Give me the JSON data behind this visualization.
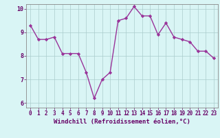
{
  "x": [
    0,
    1,
    2,
    3,
    4,
    5,
    6,
    7,
    8,
    9,
    10,
    11,
    12,
    13,
    14,
    15,
    16,
    17,
    18,
    19,
    20,
    21,
    22,
    23
  ],
  "y": [
    9.3,
    8.7,
    8.7,
    8.8,
    8.1,
    8.1,
    8.1,
    7.3,
    6.2,
    7.0,
    7.3,
    9.5,
    9.6,
    10.1,
    9.7,
    9.7,
    8.9,
    9.4,
    8.8,
    8.7,
    8.6,
    8.2,
    8.2,
    7.9
  ],
  "line_color": "#993399",
  "marker": "D",
  "marker_size": 2.2,
  "bg_color": "#d9f5f5",
  "grid_color": "#aacccc",
  "xlabel": "Windchill (Refroidissement éolien,°C)",
  "xlabel_color": "#660066",
  "tick_color": "#660066",
  "ylim": [
    5.8,
    10.2
  ],
  "xlim": [
    -0.5,
    23.5
  ],
  "yticks": [
    6,
    7,
    8,
    9,
    10
  ],
  "xticks": [
    0,
    1,
    2,
    3,
    4,
    5,
    6,
    7,
    8,
    9,
    10,
    11,
    12,
    13,
    14,
    15,
    16,
    17,
    18,
    19,
    20,
    21,
    22,
    23
  ],
  "spine_color": "#888888",
  "line_width": 1.0,
  "tick_fontsize": 5.5,
  "xlabel_fontsize": 6.5
}
